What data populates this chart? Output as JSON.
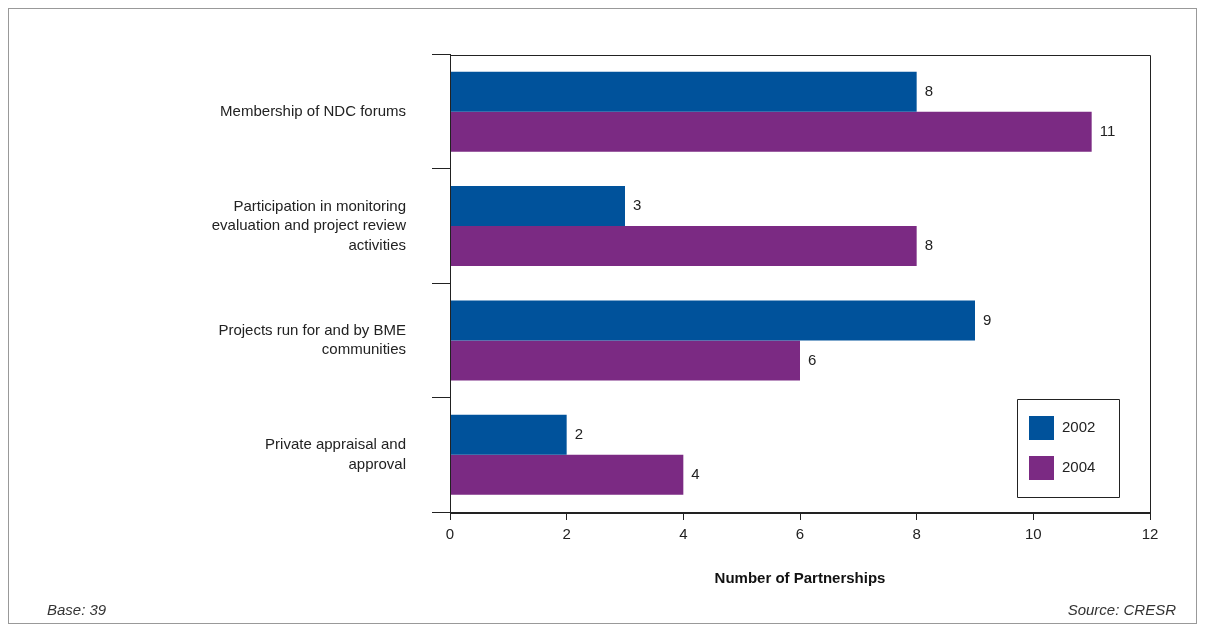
{
  "chart_data": {
    "type": "bar",
    "orientation": "horizontal",
    "xlabel": "Number of Partnerships",
    "categories": [
      "Membership of NDC forums",
      "Participation in monitoring evaluation and project review activities",
      "Projects run for and by BME communities",
      "Private appraisal and approval"
    ],
    "series": [
      {
        "name": "2002",
        "color": "#00529b",
        "values": [
          8,
          3,
          9,
          2
        ]
      },
      {
        "name": "2004",
        "color": "#7b2a83",
        "values": [
          11,
          8,
          6,
          4
        ]
      }
    ],
    "xlim": [
      0,
      12
    ],
    "xticks": [
      0,
      2,
      4,
      6,
      8,
      10,
      12
    ],
    "data_labels": true,
    "grid": false,
    "legend": "bottom right",
    "annotations": [
      "Base: 39",
      "Source: CRESR"
    ]
  }
}
